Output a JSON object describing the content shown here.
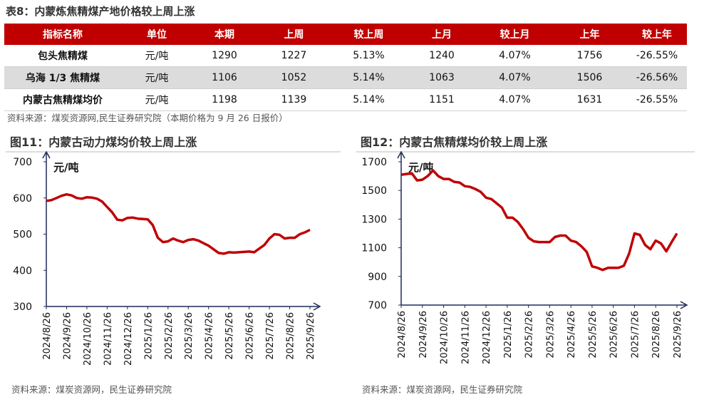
{
  "table": {
    "title": "表8：内蒙炼焦精煤产地价格较上周上涨",
    "headers": [
      "指标名称",
      "单位",
      "本期",
      "上周",
      "较上周",
      "上月",
      "较上月",
      "上年",
      "较上年"
    ],
    "rows": [
      [
        "包头焦精煤",
        "元/吨",
        "1290",
        "1227",
        "5.13%",
        "1240",
        "4.07%",
        "1756",
        "-26.55%"
      ],
      [
        "乌海 1/3 焦精煤",
        "元/吨",
        "1106",
        "1052",
        "5.14%",
        "1063",
        "4.07%",
        "1506",
        "-26.56%"
      ],
      [
        "内蒙古焦精煤均价",
        "元/吨",
        "1198",
        "1139",
        "5.14%",
        "1151",
        "4.07%",
        "1631",
        "-26.55%"
      ]
    ],
    "source": "资料来源：煤炭资源网,民生证券研究院（本期价格为 9 月 26 日报价）"
  },
  "chart_data": [
    {
      "type": "line",
      "title": "图11：内蒙古动力煤均价较上周上涨",
      "unit_label": "元/吨",
      "color": "#c00000",
      "categories": [
        "2024/8/26",
        null,
        null,
        null,
        "2024/9/26",
        null,
        null,
        null,
        "2024/10/26",
        null,
        null,
        null,
        "2024/11/26",
        null,
        null,
        null,
        "2024/12/26",
        null,
        null,
        null,
        "2025/1/26",
        null,
        null,
        null,
        "2025/2/26",
        null,
        null,
        null,
        "2025/3/26",
        null,
        null,
        null,
        "2025/4/26",
        null,
        null,
        null,
        "2025/5/26",
        null,
        null,
        null,
        "2025/6/26",
        null,
        null,
        null,
        "2025/7/26",
        null,
        null,
        null,
        "2025/8/26",
        null,
        null,
        null,
        "2025/9/26"
      ],
      "values": [
        592,
        594,
        600,
        606,
        610,
        607,
        600,
        598,
        602,
        601,
        598,
        590,
        575,
        560,
        540,
        538,
        545,
        546,
        543,
        542,
        541,
        525,
        490,
        478,
        480,
        488,
        482,
        478,
        484,
        486,
        482,
        475,
        468,
        458,
        448,
        446,
        450,
        449,
        450,
        451,
        452,
        450,
        460,
        470,
        488,
        500,
        498,
        488,
        490,
        490,
        500,
        505,
        512
      ],
      "ylim": [
        300,
        700
      ],
      "yticks": [
        300,
        400,
        500,
        600,
        700
      ],
      "source": "资料来源：煤炭资源网，民生证券研究院"
    },
    {
      "type": "line",
      "title": "图12：内蒙古焦精煤均价较上周上涨",
      "unit_label": "元/吨",
      "color": "#c00000",
      "categories": [
        "2024/8/26",
        null,
        null,
        null,
        "2024/9/26",
        null,
        null,
        null,
        "2024/10/26",
        null,
        null,
        null,
        "2024/11/26",
        null,
        null,
        null,
        "2024/12/26",
        null,
        null,
        null,
        "2025/1/26",
        null,
        null,
        null,
        "2025/2/26",
        null,
        null,
        null,
        "2025/3/26",
        null,
        null,
        null,
        "2025/4/26",
        null,
        null,
        null,
        "2025/5/26",
        null,
        null,
        null,
        "2025/6/26",
        null,
        null,
        null,
        "2025/7/26",
        null,
        null,
        null,
        "2025/8/26",
        null,
        null,
        null,
        "2025/9/26"
      ],
      "values": [
        1610,
        1615,
        1620,
        1570,
        1575,
        1600,
        1640,
        1600,
        1580,
        1580,
        1560,
        1555,
        1530,
        1525,
        1510,
        1490,
        1450,
        1440,
        1410,
        1380,
        1310,
        1310,
        1280,
        1230,
        1170,
        1145,
        1140,
        1140,
        1140,
        1175,
        1185,
        1185,
        1150,
        1140,
        1110,
        1070,
        970,
        960,
        945,
        960,
        960,
        960,
        975,
        1060,
        1200,
        1190,
        1120,
        1090,
        1150,
        1130,
        1075,
        1140,
        1200
      ],
      "ylim": [
        700,
        1700
      ],
      "yticks": [
        700,
        900,
        1100,
        1300,
        1500,
        1700
      ],
      "source": "资料来源：煤炭资源网，民生证券研究院"
    }
  ]
}
